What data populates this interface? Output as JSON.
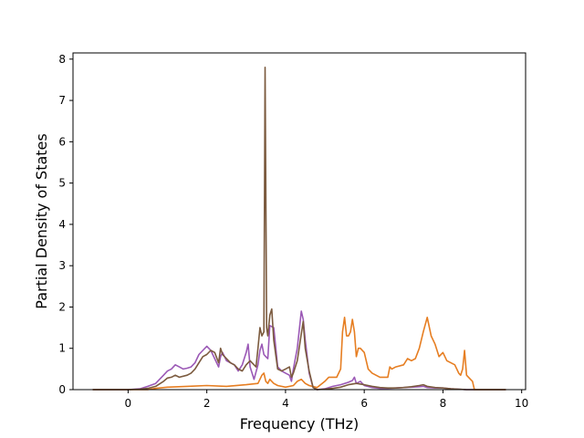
{
  "chart_data": {
    "type": "line",
    "title": "",
    "xlabel": "Frequency (THz)",
    "ylabel": "Partial Density of States",
    "xlim": [
      -1.4,
      10.1
    ],
    "ylim": [
      0,
      8.15
    ],
    "xticks": [
      0,
      2,
      4,
      6,
      8,
      10
    ],
    "yticks": [
      0,
      1,
      2,
      3,
      4,
      5,
      6,
      7,
      8
    ],
    "xtick_labels": [
      "0",
      "2",
      "4",
      "6",
      "8",
      "10"
    ],
    "ytick_labels": [
      "0",
      "1",
      "2",
      "3",
      "4",
      "5",
      "6",
      "7",
      "8"
    ],
    "grid": false,
    "legend": "none",
    "series": [
      {
        "color": "#9b59b6",
        "x": [
          -0.9,
          0.0,
          0.3,
          0.5,
          0.7,
          0.9,
          1.0,
          1.1,
          1.2,
          1.3,
          1.4,
          1.5,
          1.6,
          1.7,
          1.8,
          1.9,
          2.0,
          2.05,
          2.1,
          2.2,
          2.3,
          2.35,
          2.4,
          2.5,
          2.6,
          2.7,
          2.8,
          2.9,
          3.0,
          3.05,
          3.1,
          3.2,
          3.3,
          3.35,
          3.4,
          3.45,
          3.5,
          3.55,
          3.6,
          3.7,
          3.8,
          3.9,
          4.0,
          4.1,
          4.15,
          4.2,
          4.3,
          4.4,
          4.45,
          4.5,
          4.6,
          4.7,
          4.8,
          5.0,
          5.2,
          5.4,
          5.6,
          5.7,
          5.75,
          5.8,
          5.9,
          6.0,
          6.2,
          6.4,
          6.6,
          6.8,
          7.0,
          7.2,
          7.4,
          7.5,
          7.6,
          7.8,
          8.0,
          8.2,
          8.4,
          8.6,
          8.8,
          9.6
        ],
        "y": [
          0,
          0,
          0.02,
          0.08,
          0.15,
          0.35,
          0.45,
          0.5,
          0.6,
          0.55,
          0.5,
          0.52,
          0.55,
          0.65,
          0.85,
          0.95,
          1.05,
          1.0,
          0.95,
          0.75,
          0.55,
          0.8,
          0.9,
          0.7,
          0.65,
          0.6,
          0.45,
          0.6,
          0.9,
          1.1,
          0.55,
          0.25,
          0.6,
          0.95,
          1.1,
          0.85,
          0.8,
          0.75,
          1.55,
          1.5,
          0.55,
          0.45,
          0.4,
          0.35,
          0.2,
          0.5,
          1.0,
          1.9,
          1.7,
          1.2,
          0.4,
          0.05,
          0.0,
          0.02,
          0.08,
          0.12,
          0.18,
          0.22,
          0.3,
          0.15,
          0.2,
          0.1,
          0.05,
          0.03,
          0.03,
          0.04,
          0.05,
          0.06,
          0.07,
          0.08,
          0.05,
          0.04,
          0.04,
          0.02,
          0.01,
          0.0,
          0.0,
          0.0
        ]
      },
      {
        "color": "#e67e22",
        "x": [
          -0.9,
          0.5,
          0.7,
          1.0,
          1.5,
          2.0,
          2.5,
          3.0,
          3.3,
          3.4,
          3.45,
          3.5,
          3.55,
          3.6,
          3.7,
          3.8,
          4.0,
          4.2,
          4.3,
          4.4,
          4.5,
          4.6,
          4.8,
          5.0,
          5.1,
          5.2,
          5.3,
          5.4,
          5.45,
          5.5,
          5.55,
          5.6,
          5.65,
          5.7,
          5.75,
          5.8,
          5.85,
          5.9,
          6.0,
          6.1,
          6.2,
          6.4,
          6.6,
          6.65,
          6.7,
          6.8,
          7.0,
          7.1,
          7.2,
          7.3,
          7.4,
          7.5,
          7.6,
          7.7,
          7.8,
          7.9,
          8.0,
          8.1,
          8.2,
          8.3,
          8.4,
          8.45,
          8.5,
          8.55,
          8.6,
          8.7,
          8.75,
          8.8,
          9.6
        ],
        "y": [
          0,
          0,
          0.03,
          0.06,
          0.08,
          0.1,
          0.08,
          0.12,
          0.15,
          0.35,
          0.4,
          0.2,
          0.15,
          0.25,
          0.15,
          0.1,
          0.06,
          0.1,
          0.2,
          0.25,
          0.15,
          0.1,
          0.05,
          0.2,
          0.3,
          0.3,
          0.3,
          0.5,
          1.4,
          1.75,
          1.3,
          1.3,
          1.4,
          1.7,
          1.4,
          0.8,
          1.0,
          1.0,
          0.9,
          0.5,
          0.4,
          0.3,
          0.3,
          0.55,
          0.5,
          0.55,
          0.6,
          0.75,
          0.7,
          0.75,
          1.0,
          1.4,
          1.75,
          1.3,
          1.1,
          0.8,
          0.9,
          0.7,
          0.65,
          0.6,
          0.4,
          0.35,
          0.5,
          0.95,
          0.35,
          0.25,
          0.2,
          0.0,
          0.0
        ]
      },
      {
        "color": "#7b5a3e",
        "x": [
          -0.9,
          0.0,
          0.3,
          0.5,
          0.7,
          0.9,
          1.0,
          1.1,
          1.2,
          1.3,
          1.5,
          1.6,
          1.7,
          1.8,
          1.9,
          2.0,
          2.1,
          2.2,
          2.3,
          2.35,
          2.4,
          2.5,
          2.6,
          2.7,
          2.8,
          2.9,
          3.0,
          3.1,
          3.2,
          3.25,
          3.3,
          3.35,
          3.4,
          3.45,
          3.48,
          3.52,
          3.55,
          3.6,
          3.65,
          3.7,
          3.8,
          3.9,
          4.0,
          4.1,
          4.15,
          4.2,
          4.3,
          4.4,
          4.45,
          4.5,
          4.6,
          4.7,
          4.8,
          5.0,
          5.2,
          5.4,
          5.6,
          5.8,
          6.0,
          6.2,
          6.4,
          6.6,
          6.8,
          7.0,
          7.2,
          7.4,
          7.5,
          7.6,
          7.8,
          8.0,
          8.2,
          8.4,
          8.6,
          8.8,
          9.6
        ],
        "y": [
          0,
          0,
          0.01,
          0.03,
          0.08,
          0.2,
          0.28,
          0.3,
          0.35,
          0.3,
          0.35,
          0.4,
          0.5,
          0.65,
          0.8,
          0.85,
          0.95,
          0.9,
          0.65,
          1.0,
          0.85,
          0.75,
          0.65,
          0.6,
          0.5,
          0.45,
          0.6,
          0.7,
          0.6,
          0.55,
          1.0,
          1.5,
          1.3,
          1.4,
          7.8,
          1.5,
          1.3,
          1.8,
          1.95,
          1.2,
          0.5,
          0.45,
          0.5,
          0.55,
          0.3,
          0.4,
          0.7,
          1.35,
          1.65,
          1.0,
          0.45,
          0.05,
          0.0,
          0.01,
          0.03,
          0.06,
          0.12,
          0.15,
          0.12,
          0.08,
          0.05,
          0.04,
          0.04,
          0.05,
          0.07,
          0.1,
          0.12,
          0.08,
          0.05,
          0.04,
          0.02,
          0.01,
          0.0,
          0.0,
          0.0
        ]
      }
    ]
  }
}
